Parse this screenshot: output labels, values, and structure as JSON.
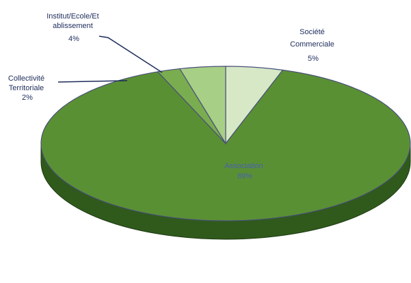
{
  "chart_data": {
    "type": "pie",
    "title": "",
    "labels": [
      "Association",
      "Collectivité Territoriale",
      "Institut/Ecole/Etablissement",
      "Société Commerciale"
    ],
    "values": [
      89,
      2,
      4,
      5
    ],
    "value_labels": [
      "89%",
      "2%",
      "4%",
      "5%"
    ],
    "colors": [
      "#5a9034",
      "#7aad4f",
      "#a8cf86",
      "#d6e8c6"
    ],
    "legend": "none",
    "label_lines": {
      "association": [
        "Association",
        "89%"
      ],
      "collectivite": [
        "Collectivité",
        "Territoriale",
        "2%"
      ],
      "institut": [
        "Institut/Ecole/Et",
        "ablissement",
        "4%"
      ],
      "societe": [
        "Société",
        "Commerciale",
        "5%"
      ]
    }
  }
}
